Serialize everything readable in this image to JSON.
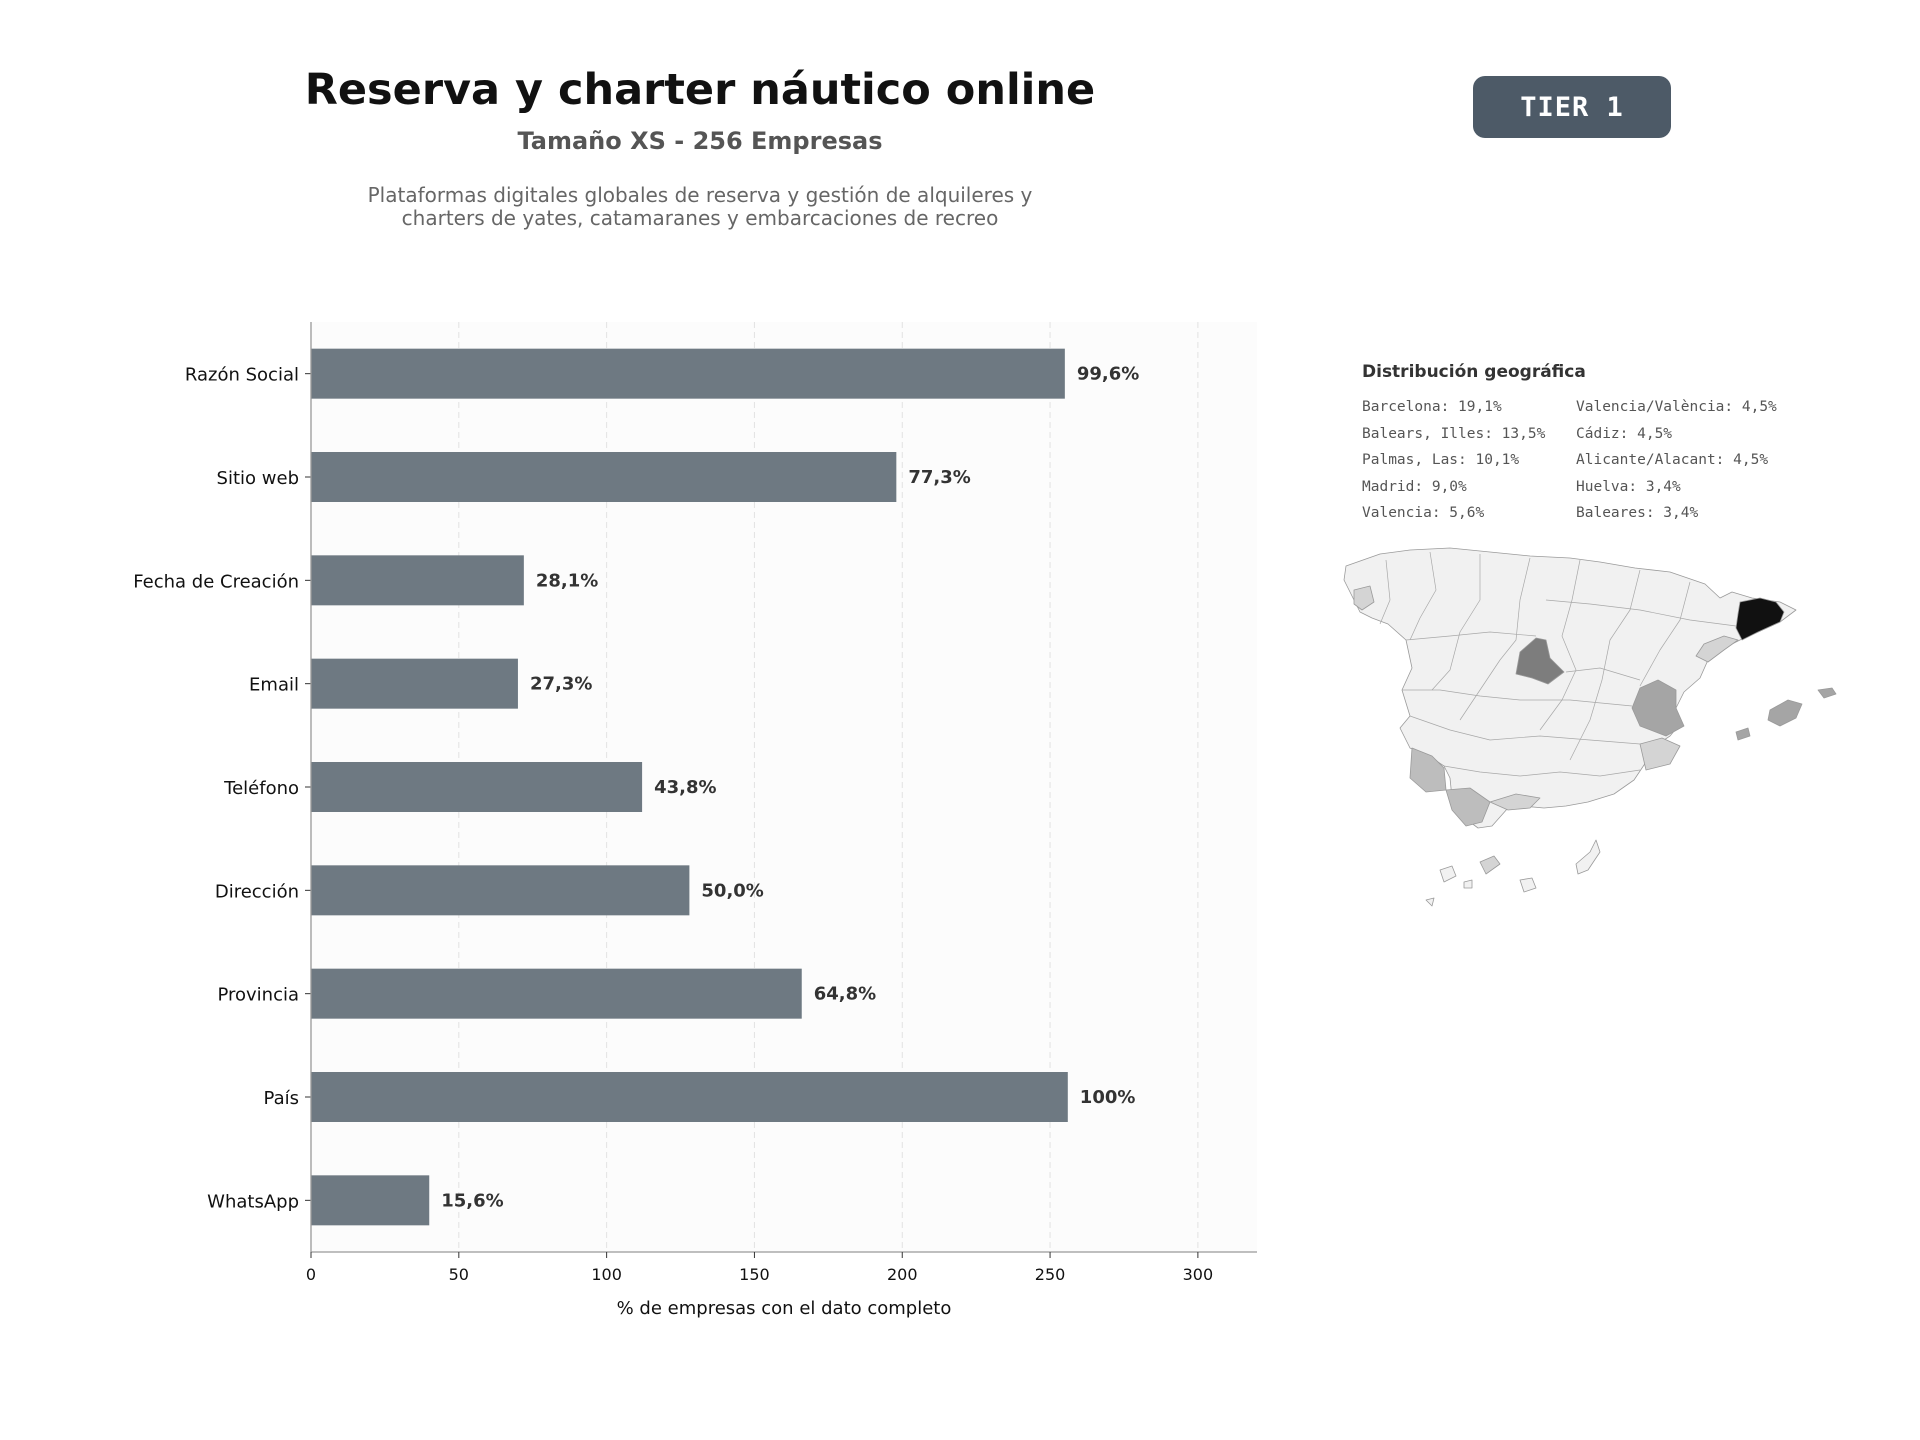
{
  "header": {
    "title": "Reserva y charter náutico online",
    "subtitle": "Tamaño XS - 256 Empresas",
    "description_lines": [
      "Plataformas digitales globales de reserva y gestión de alquileres y",
      "charters de yates, catamaranes y embarcaciones de recreo"
    ],
    "tier_badge": "TIER 1"
  },
  "chart_data": {
    "type": "bar",
    "orientation": "horizontal",
    "categories": [
      "Razón Social",
      "Sitio web",
      "Fecha de Creación",
      "Email",
      "Teléfono",
      "Dirección",
      "Provincia",
      "País",
      "WhatsApp"
    ],
    "values": [
      255,
      198,
      72,
      70,
      112,
      128,
      166,
      256,
      40
    ],
    "data_labels": [
      "99,6%",
      "77,3%",
      "28,1%",
      "27,3%",
      "43,8%",
      "50,0%",
      "64,8%",
      "100%",
      "15,6%"
    ],
    "xlabel": "% de empresas con el dato completo",
    "xlim": [
      0,
      320
    ],
    "xticks": [
      0,
      50,
      100,
      150,
      200,
      250,
      300
    ],
    "grid": "vertical dashed",
    "bar_color": "#6e7982"
  },
  "geo": {
    "title": "Distribución geográfica",
    "items": [
      "Barcelona: 19,1%",
      "Valencia/València: 4,5%",
      "Balears, Illes: 13,5%",
      "Cádiz: 4,5%",
      "Palmas, Las: 10,1%",
      "Alicante/Alacant: 4,5%",
      "Madrid: 9,0%",
      "Huelva: 3,4%",
      "Valencia: 5,6%",
      "Baleares: 3,4%"
    ],
    "map_colors": {
      "base": "#f1f1f1",
      "barcelona": "#111111",
      "madrid": "#7d7d7d",
      "valencia": "#a5a5a5",
      "huelva_cadiz": "#bdbdbd",
      "secondary": "#d4d4d4"
    }
  }
}
